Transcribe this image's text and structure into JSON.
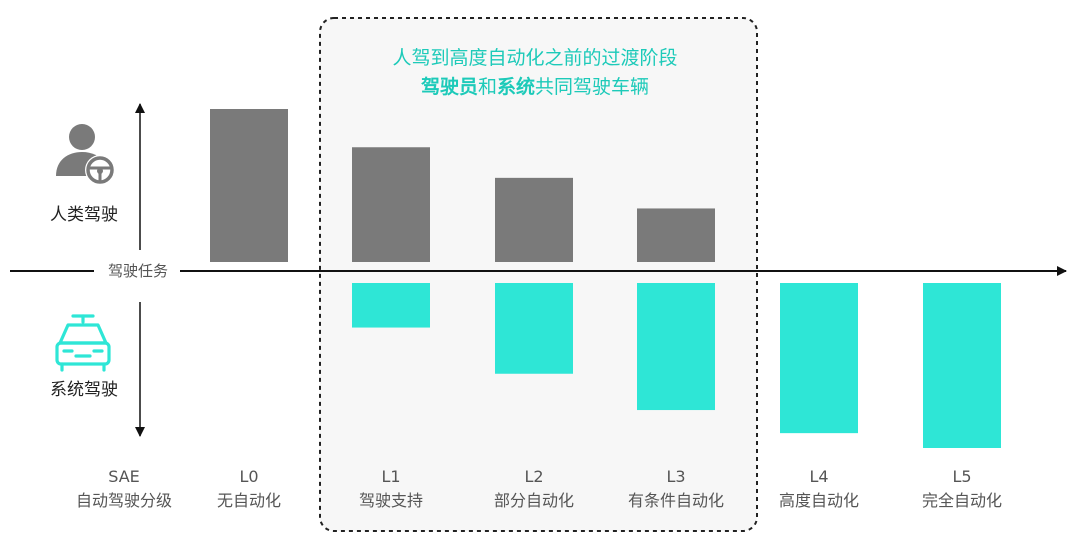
{
  "colors": {
    "human": "#7a7a7a",
    "system": "#2ee6d6",
    "accent": "#1dcab9",
    "text": "#222222",
    "muted": "#555555",
    "transition_zone_fill": "#f7f7f7"
  },
  "icons": {
    "human": "person-steering-wheel-icon",
    "system": "car-icon"
  },
  "legend": {
    "human": "人类驾驶",
    "system": "系统驾驶"
  },
  "axis_label": "驾驶任务",
  "sae_label": {
    "line1": "SAE",
    "line2": "自动驾驶分级"
  },
  "transition_note": {
    "line1": "人驾到高度自动化之前的过渡阶段",
    "line2_bold1": "驾驶员",
    "line2_mid": "和",
    "line2_bold2": "系统",
    "line2_end": "共同驾驶车辆"
  },
  "chart_data": {
    "type": "bar",
    "categories": [
      "L0",
      "L1",
      "L2",
      "L3",
      "L4",
      "L5"
    ],
    "category_names": [
      "无自动化",
      "驾驶支持",
      "部分自动化",
      "有条件自动化",
      "高度自动化",
      "完全自动化"
    ],
    "series": [
      {
        "values": [
          100,
          75,
          55,
          35,
          0,
          0
        ]
      },
      {
        "values": [
          0,
          27,
          55,
          77,
          91,
          100
        ]
      }
    ],
    "highlight_range": [
      "L1",
      "L3"
    ],
    "grid": false
  }
}
